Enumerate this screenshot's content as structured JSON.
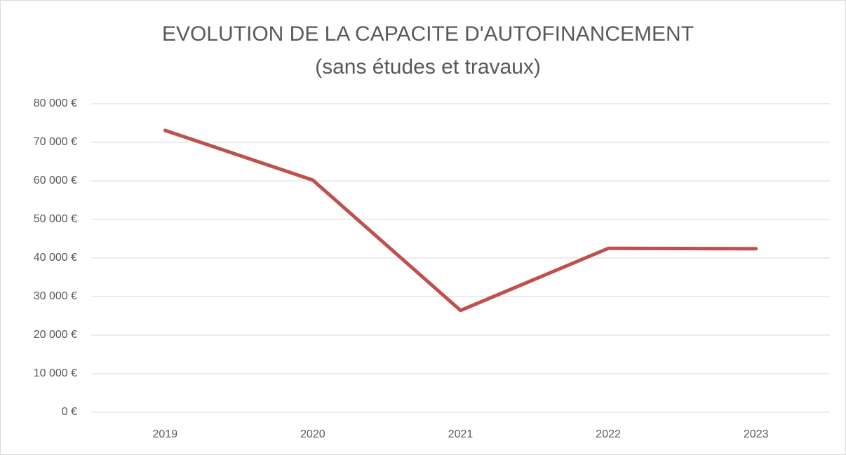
{
  "chart_data": {
    "type": "line",
    "title": "EVOLUTION DE LA CAPACITE D'AUTOFINANCEMENT",
    "subtitle": "(sans études et travaux)",
    "categories": [
      "2019",
      "2020",
      "2021",
      "2022",
      "2023"
    ],
    "values": [
      73100,
      60200,
      26400,
      42500,
      42400
    ],
    "color": "#c0504d",
    "ylim": [
      0,
      80000
    ],
    "yticks": [
      {
        "value": 0,
        "label": "0 €"
      },
      {
        "value": 10000,
        "label": "10 000 €"
      },
      {
        "value": 20000,
        "label": "20 000 €"
      },
      {
        "value": 30000,
        "label": "30 000 €"
      },
      {
        "value": 40000,
        "label": "40 000 €"
      },
      {
        "value": 50000,
        "label": "50 000 €"
      },
      {
        "value": 60000,
        "label": "60 000 €"
      },
      {
        "value": 70000,
        "label": "70 000 €"
      },
      {
        "value": 80000,
        "label": "80 000 €"
      }
    ],
    "grid": true
  }
}
